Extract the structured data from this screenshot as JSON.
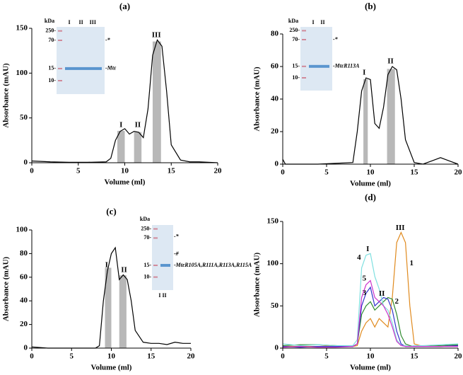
{
  "chart_data": [
    {
      "type": "line",
      "title": "(a)",
      "xlabel": "Volume (ml)",
      "ylabel": "Absorbance (mAU)",
      "xlim": [
        0,
        20
      ],
      "ylim": [
        0,
        150
      ],
      "xticks": [
        0,
        5,
        10,
        15,
        20
      ],
      "yticks": [
        0,
        50,
        100,
        150
      ],
      "x": [
        0,
        2,
        4,
        6,
        8,
        8.5,
        9,
        9.5,
        10,
        10.5,
        11,
        11.5,
        12,
        12.5,
        13,
        13.5,
        14,
        14.5,
        15,
        16,
        17,
        18,
        20
      ],
      "series": [
        {
          "color": "#000000",
          "values": [
            2,
            1,
            0.5,
            0.5,
            1,
            5,
            25,
            35,
            38,
            32,
            35,
            34,
            28,
            60,
            120,
            137,
            130,
            80,
            20,
            3,
            1,
            1,
            0
          ]
        }
      ],
      "shaded": [
        [
          9.2,
          10
        ],
        [
          11,
          11.8
        ],
        [
          13,
          13.9
        ]
      ],
      "annotations": [
        {
          "text": "I",
          "x": 9.6,
          "y": 42
        },
        {
          "text": "II",
          "x": 11.4,
          "y": 42
        },
        {
          "text": "III",
          "x": 13.4,
          "y": 142
        }
      ],
      "inset": {
        "unit": "kDa",
        "markers": [
          "250-",
          "70-",
          "15-",
          "10-"
        ],
        "lanes": [
          "I",
          "II",
          "III"
        ],
        "bands": [
          "-*",
          "-Mtε"
        ]
      }
    },
    {
      "type": "line",
      "title": "(b)",
      "xlabel": "Volume (ml)",
      "ylabel": "Absorbance (mAU)",
      "xlim": [
        0,
        20
      ],
      "ylim": [
        0,
        80
      ],
      "xticks": [
        0,
        5,
        10,
        15,
        20
      ],
      "yticks": [
        0,
        20,
        40,
        60,
        80
      ],
      "x": [
        0,
        0.3,
        1,
        4,
        8,
        8.5,
        9,
        9.5,
        10,
        10.5,
        11,
        11.5,
        12,
        12.5,
        13,
        13.5,
        14,
        15,
        16,
        17,
        18,
        19,
        20
      ],
      "series": [
        {
          "color": "#000000",
          "values": [
            3,
            0,
            0,
            0,
            1,
            20,
            45,
            53,
            52,
            25,
            22,
            35,
            55,
            60,
            58,
            40,
            15,
            1,
            0,
            2,
            4,
            2,
            0
          ]
        }
      ],
      "shaded": [
        [
          9.2,
          9.7
        ],
        [
          11.9,
          12.8
        ]
      ],
      "annotations": [
        {
          "text": "I",
          "x": 9.3,
          "y": 56
        },
        {
          "text": "II",
          "x": 12.3,
          "y": 63
        }
      ],
      "inset": {
        "unit": "kDa",
        "markers": [
          "250-",
          "70-",
          "15-",
          "10-"
        ],
        "lanes": [
          "I",
          "II"
        ],
        "bands": [
          "-*",
          "-MtεR113A"
        ]
      }
    },
    {
      "type": "line",
      "title": "(c)",
      "xlabel": "Volume (ml)",
      "ylabel": "Absorbance (mAU)",
      "xlim": [
        0,
        20
      ],
      "ylim": [
        0,
        100
      ],
      "xticks": [
        0,
        5,
        10,
        15,
        20
      ],
      "yticks": [
        0,
        20,
        40,
        60,
        80,
        100
      ],
      "x": [
        0,
        2,
        5,
        8,
        8.5,
        9,
        9.5,
        10,
        10.5,
        11,
        11.5,
        12,
        12.5,
        13,
        14,
        15,
        16,
        17,
        18,
        19,
        20
      ],
      "series": [
        {
          "color": "#000000",
          "values": [
            1,
            0,
            0,
            0,
            2,
            40,
            65,
            80,
            85,
            58,
            62,
            58,
            40,
            15,
            5,
            4,
            4,
            3,
            5,
            4,
            4
          ]
        }
      ],
      "shaded": [
        [
          9.2,
          10
        ],
        [
          11,
          11.9
        ]
      ],
      "annotations": [
        {
          "text": "I",
          "x": 9.4,
          "y": 70
        },
        {
          "text": "II",
          "x": 11.6,
          "y": 66
        }
      ],
      "inset": {
        "unit": "kDa",
        "markers": [
          "250-",
          "70-",
          "15-",
          "10-"
        ],
        "lanes": [
          "I II"
        ],
        "bands": [
          "-*",
          "-#",
          "-MtεR105A,R111A,R113A,R115A"
        ]
      }
    },
    {
      "type": "line",
      "title": "(d)",
      "xlabel": "Volume (ml)",
      "ylabel": "Absorbance (mAU)",
      "xlim": [
        0,
        20
      ],
      "ylim": [
        0,
        150
      ],
      "xticks": [
        0,
        5,
        10,
        15,
        20
      ],
      "yticks": [
        0,
        50,
        100,
        150
      ],
      "x": [
        0,
        2,
        4,
        6,
        8,
        8.5,
        9,
        9.5,
        10,
        10.5,
        11,
        11.5,
        12,
        12.5,
        13,
        13.5,
        14,
        14.5,
        15,
        16,
        18,
        20
      ],
      "series": [
        {
          "name": "1",
          "color": "#e08a1e",
          "values": [
            2,
            2,
            2,
            3,
            2,
            3,
            20,
            30,
            35,
            25,
            35,
            30,
            25,
            60,
            125,
            137,
            125,
            50,
            5,
            2,
            2,
            3
          ]
        },
        {
          "name": "2",
          "color": "#2e8b2e",
          "values": [
            3,
            4,
            4,
            3,
            2,
            5,
            40,
            50,
            55,
            45,
            50,
            55,
            60,
            58,
            40,
            15,
            5,
            3,
            2,
            2,
            3,
            4
          ]
        },
        {
          "name": "3",
          "color": "#3333cc",
          "values": [
            2,
            1,
            2,
            2,
            2,
            5,
            50,
            65,
            72,
            50,
            55,
            60,
            58,
            45,
            20,
            5,
            2,
            2,
            2,
            2,
            2,
            3
          ]
        },
        {
          "name": "4",
          "color": "#7fe0e0",
          "values": [
            5,
            3,
            4,
            3,
            3,
            10,
            95,
            110,
            112,
            85,
            70,
            50,
            45,
            30,
            10,
            3,
            3,
            2,
            3,
            3,
            4,
            5
          ]
        },
        {
          "name": "5",
          "color": "#cc33cc",
          "values": [
            1,
            2,
            1,
            1,
            2,
            5,
            60,
            75,
            80,
            60,
            55,
            50,
            40,
            25,
            8,
            3,
            2,
            2,
            2,
            2,
            2,
            2
          ]
        }
      ],
      "annotations": [
        {
          "text": "I",
          "x": 9.7,
          "y": 117
        },
        {
          "text": "II",
          "x": 11.3,
          "y": 64
        },
        {
          "text": "III",
          "x": 13.4,
          "y": 142
        }
      ]
    }
  ]
}
